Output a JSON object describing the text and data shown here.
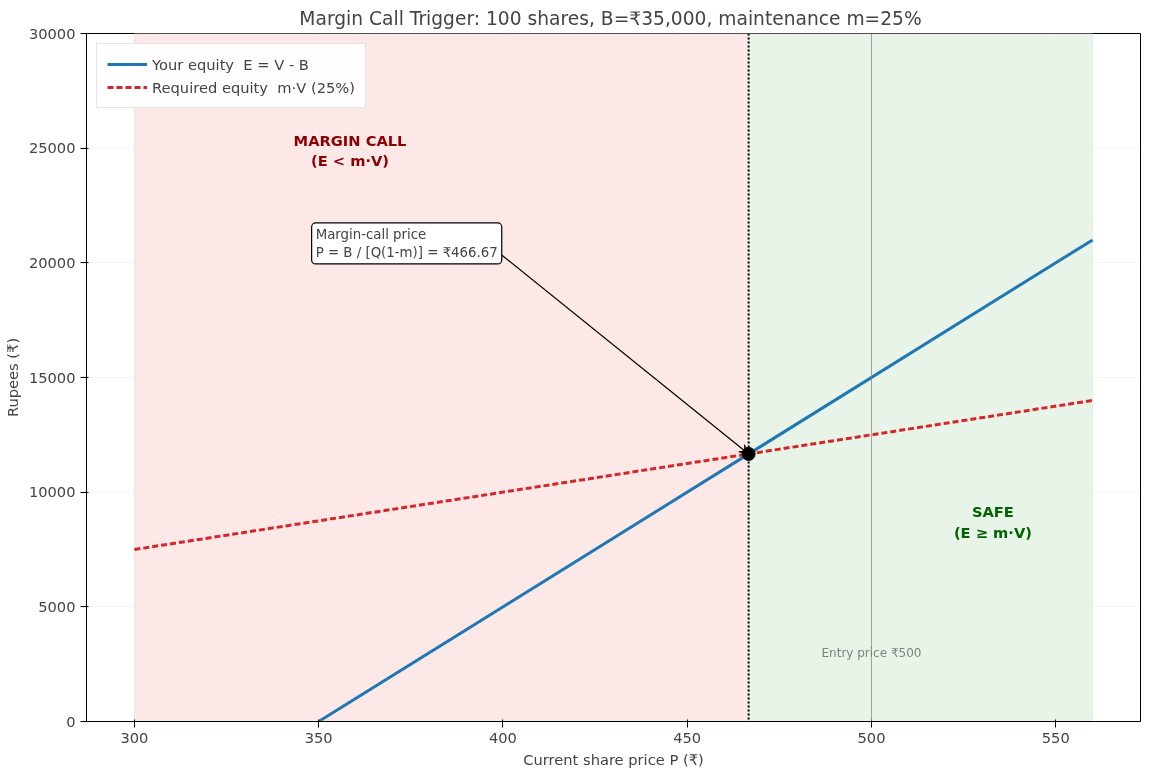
{
  "chart_data": {
    "type": "line",
    "title": "Margin Call Trigger:  100 shares, B=₹35,000, maintenance m=25%",
    "xlabel": "Current share price P (₹)",
    "ylabel": "Rupees (₹)",
    "xlim": [
      287,
      573
    ],
    "ylim": [
      0,
      30000
    ],
    "xticks": [
      300,
      350,
      400,
      450,
      500,
      550
    ],
    "yticks": [
      0,
      5000,
      10000,
      15000,
      20000,
      25000,
      30000
    ],
    "series": [
      {
        "name": "Your equity  E = V - B",
        "color": "#1f77b4",
        "x": [
          350,
          560
        ],
        "values": [
          0,
          21000
        ],
        "line_style": "solid"
      },
      {
        "name": "Required equity  m·V (25%)",
        "color": "#d62728",
        "x": [
          300,
          560
        ],
        "values": [
          7500,
          14000
        ],
        "line_style": "dashed"
      },
      {
        "type": "scatter",
        "color": "#000000",
        "x": [
          466.67
        ],
        "values": [
          11667
        ],
        "marker": "circle"
      }
    ],
    "bands": [
      {
        "axis": "x",
        "from": 300,
        "to": 466.67,
        "color": "#fde8e8"
      },
      {
        "axis": "x",
        "from": 466.67,
        "to": 560,
        "color": "#e8f4e8"
      }
    ],
    "ref_lines": [
      {
        "axis": "x",
        "value": 466.67,
        "color": "#000000",
        "line_style": "dotted"
      },
      {
        "axis": "x",
        "value": 500,
        "color": "#808080",
        "line_style": "solid",
        "label": "Entry price ₹500"
      }
    ],
    "annotations": [
      {
        "text": "Margin-call price\nP = B / [Q(1-m)] = ₹466.67",
        "x": 466.67,
        "y": 11667
      },
      "MARGIN CALL\n(E < m·V)",
      "SAFE\n(E ≥ m·V)"
    ],
    "grid": true,
    "legend": "top left"
  }
}
